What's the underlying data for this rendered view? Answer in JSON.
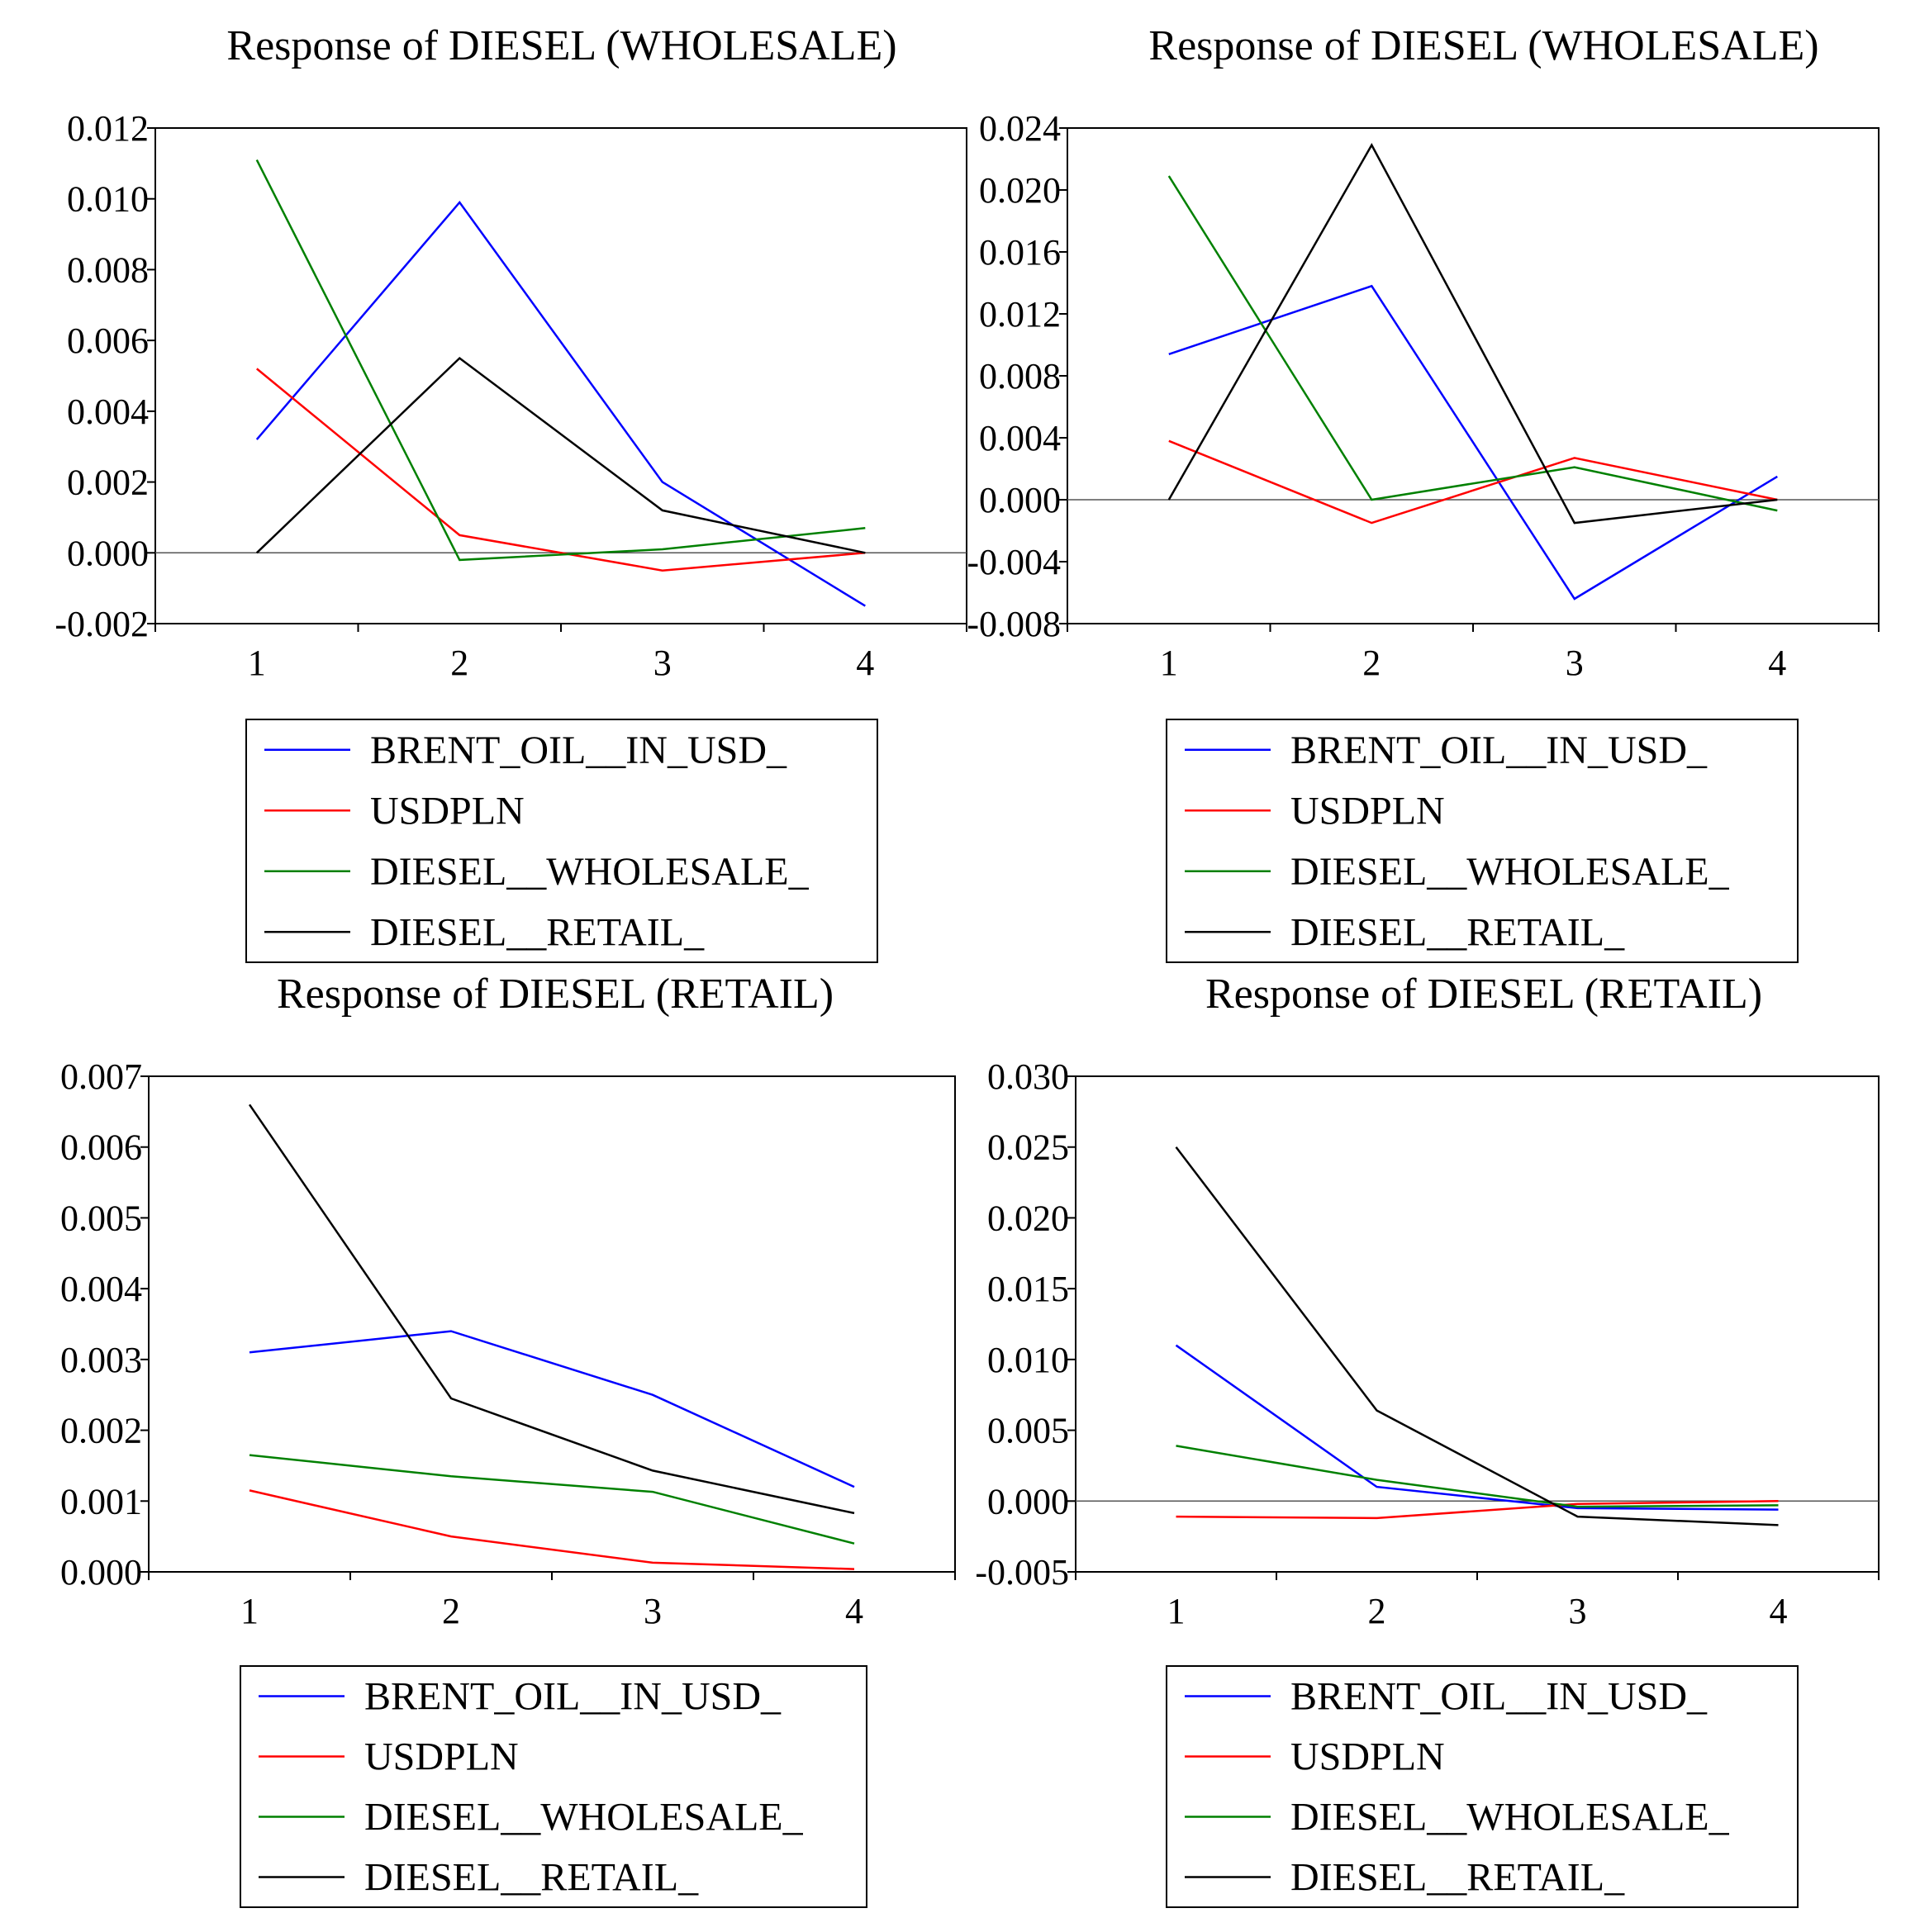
{
  "chart_data": [
    {
      "type": "line",
      "title": "Response of DIESEL (WHOLESALE)",
      "x": [
        1,
        2,
        3,
        4
      ],
      "x_ticks": [
        "1",
        "2",
        "3",
        "4"
      ],
      "ylim": [
        -0.002,
        0.012
      ],
      "y_ticks": [
        "0.012",
        "0.010",
        "0.008",
        "0.006",
        "0.004",
        "0.002",
        "0.000",
        "-0.002"
      ],
      "y_tick_values": [
        0.012,
        0.01,
        0.008,
        0.006,
        0.004,
        0.002,
        0.0,
        -0.002
      ],
      "zero_line": true,
      "legend_position": "below",
      "series": [
        {
          "name": "BRENT_OIL__IN_USD_",
          "color": "#0000ff",
          "values": [
            0.0032,
            0.0099,
            0.002,
            -0.0015
          ]
        },
        {
          "name": "USDPLN",
          "color": "#ff0000",
          "values": [
            0.0052,
            0.0005,
            -0.0005,
            0.0
          ]
        },
        {
          "name": "DIESEL__WHOLESALE_",
          "color": "#008000",
          "values": [
            0.0111,
            -0.0002,
            0.0001,
            0.0007
          ]
        },
        {
          "name": "DIESEL__RETAIL_",
          "color": "#000000",
          "values": [
            0.0,
            0.0055,
            0.0012,
            0.0
          ]
        }
      ]
    },
    {
      "type": "line",
      "title": "Response of DIESEL (WHOLESALE)",
      "x": [
        1,
        2,
        3,
        4
      ],
      "x_ticks": [
        "1",
        "2",
        "3",
        "4"
      ],
      "ylim": [
        -0.008,
        0.024
      ],
      "y_ticks": [
        "0.024",
        "0.020",
        "0.016",
        "0.012",
        "0.008",
        "0.004",
        "0.000",
        "-0.004",
        "-0.008"
      ],
      "y_tick_values": [
        0.024,
        0.02,
        0.016,
        0.012,
        0.008,
        0.004,
        0.0,
        -0.004,
        -0.008
      ],
      "zero_line": true,
      "legend_position": "below",
      "series": [
        {
          "name": "BRENT_OIL__IN_USD_",
          "color": "#0000ff",
          "values": [
            0.0094,
            0.0138,
            -0.0064,
            0.0015
          ]
        },
        {
          "name": "USDPLN",
          "color": "#ff0000",
          "values": [
            0.0038,
            -0.0015,
            0.0027,
            0.0
          ]
        },
        {
          "name": "DIESEL__WHOLESALE_",
          "color": "#008000",
          "values": [
            0.0209,
            0.0,
            0.0021,
            -0.0007
          ]
        },
        {
          "name": "DIESEL__RETAIL_",
          "color": "#000000",
          "values": [
            0.0,
            0.0229,
            -0.0015,
            0.0
          ]
        }
      ]
    },
    {
      "type": "line",
      "title": "Response of DIESEL (RETAIL)",
      "x": [
        1,
        2,
        3,
        4
      ],
      "x_ticks": [
        "1",
        "2",
        "3",
        "4"
      ],
      "ylim": [
        0.0,
        0.007
      ],
      "y_ticks": [
        "0.007",
        "0.006",
        "0.005",
        "0.004",
        "0.003",
        "0.002",
        "0.001",
        "0.000"
      ],
      "y_tick_values": [
        0.007,
        0.006,
        0.005,
        0.004,
        0.003,
        0.002,
        0.001,
        0.0
      ],
      "zero_line": false,
      "legend_position": "below",
      "series": [
        {
          "name": "BRENT_OIL__IN_USD_",
          "color": "#0000ff",
          "values": [
            0.0031,
            0.0034,
            0.0025,
            0.0012
          ]
        },
        {
          "name": "USDPLN",
          "color": "#ff0000",
          "values": [
            0.00115,
            0.0005,
            0.00013,
            4e-05
          ]
        },
        {
          "name": "DIESEL__WHOLESALE_",
          "color": "#008000",
          "values": [
            0.00165,
            0.00135,
            0.00113,
            0.0004
          ]
        },
        {
          "name": "DIESEL__RETAIL_",
          "color": "#000000",
          "values": [
            0.0066,
            0.00245,
            0.00143,
            0.00083
          ]
        }
      ]
    },
    {
      "type": "line",
      "title": "Response of DIESEL (RETAIL)",
      "x": [
        1,
        2,
        3,
        4
      ],
      "x_ticks": [
        "1",
        "2",
        "3",
        "4"
      ],
      "ylim": [
        -0.005,
        0.03
      ],
      "y_ticks": [
        "0.030",
        "0.025",
        "0.020",
        "0.015",
        "0.010",
        "0.005",
        "0.000",
        "-0.005"
      ],
      "y_tick_values": [
        0.03,
        0.025,
        0.02,
        0.015,
        0.01,
        0.005,
        0.0,
        -0.005
      ],
      "zero_line": true,
      "legend_position": "below",
      "series": [
        {
          "name": "BRENT_OIL__IN_USD_",
          "color": "#0000ff",
          "values": [
            0.011,
            0.001,
            -0.0005,
            -0.0006
          ]
        },
        {
          "name": "USDPLN",
          "color": "#ff0000",
          "values": [
            -0.0011,
            -0.0012,
            -0.0002,
            0.0
          ]
        },
        {
          "name": "DIESEL__WHOLESALE_",
          "color": "#008000",
          "values": [
            0.0039,
            0.0015,
            -0.0004,
            -0.0003
          ]
        },
        {
          "name": "DIESEL__RETAIL_",
          "color": "#000000",
          "values": [
            0.025,
            0.0064,
            -0.0011,
            -0.0017
          ]
        }
      ]
    }
  ]
}
